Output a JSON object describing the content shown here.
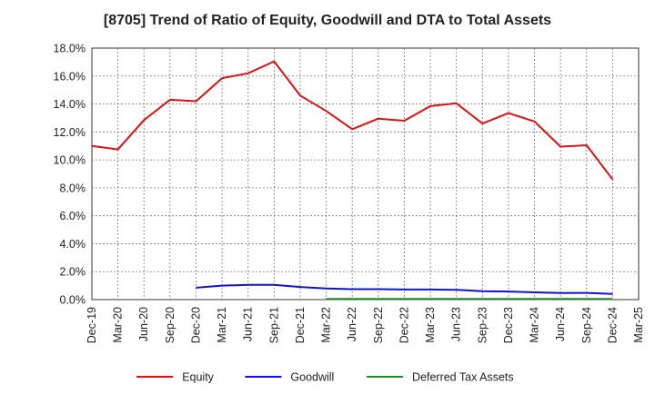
{
  "chart_data": {
    "type": "line",
    "title": "[8705]  Trend of Ratio of Equity, Goodwill and DTA to Total Assets",
    "categories": [
      "Dec-19",
      "Mar-20",
      "Jun-20",
      "Sep-20",
      "Dec-20",
      "Mar-21",
      "Jun-21",
      "Sep-21",
      "Dec-21",
      "Mar-22",
      "Jun-22",
      "Sep-22",
      "Dec-22",
      "Mar-23",
      "Jun-23",
      "Sep-23",
      "Dec-23",
      "Mar-24",
      "Jun-24",
      "Sep-24",
      "Dec-24",
      "Mar-25"
    ],
    "yticks": [
      "0.0%",
      "2.0%",
      "4.0%",
      "6.0%",
      "8.0%",
      "10.0%",
      "12.0%",
      "14.0%",
      "16.0%",
      "18.0%"
    ],
    "ylim": [
      0,
      18
    ],
    "grid": true,
    "legend_position": "bottom",
    "series": [
      {
        "name": "Equity",
        "color": "#dd1111",
        "values": [
          11.0,
          10.75,
          12.85,
          14.3,
          14.2,
          15.85,
          16.2,
          17.05,
          14.6,
          13.5,
          12.2,
          12.95,
          12.8,
          13.85,
          14.05,
          12.6,
          13.35,
          12.75,
          10.95,
          11.05,
          8.6,
          null
        ]
      },
      {
        "name": "Goodwill",
        "color": "#1111dd",
        "values": [
          null,
          null,
          null,
          null,
          0.85,
          1.0,
          1.05,
          1.05,
          0.9,
          0.8,
          0.75,
          0.75,
          0.72,
          0.72,
          0.7,
          0.6,
          0.58,
          0.52,
          0.47,
          0.48,
          0.4,
          null
        ]
      },
      {
        "name": "Deferred Tax Assets",
        "color": "#22882a",
        "values": [
          null,
          null,
          null,
          null,
          null,
          null,
          null,
          null,
          null,
          0.05,
          0.05,
          0.05,
          0.05,
          0.05,
          0.05,
          0.05,
          0.05,
          0.05,
          0.05,
          0.05,
          0.05,
          null
        ]
      }
    ]
  }
}
